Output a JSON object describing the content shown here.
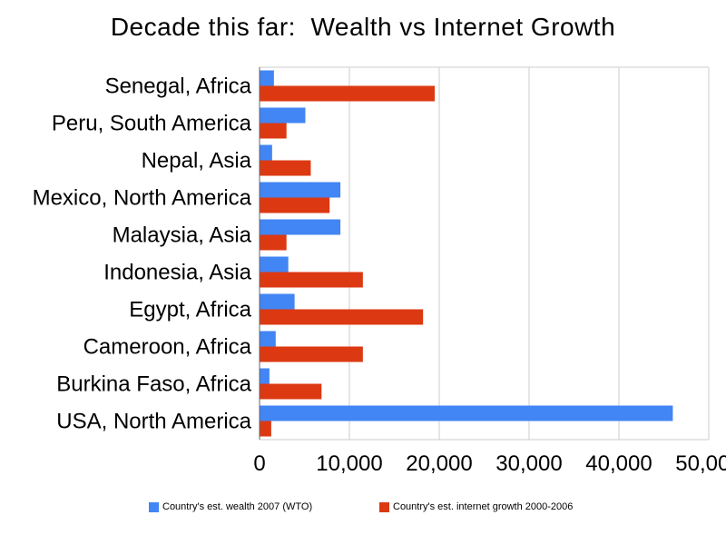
{
  "chart_data": {
    "type": "bar",
    "orientation": "horizontal",
    "title": "Decade this far:  Wealth vs Internet Growth",
    "xlabel": "",
    "ylabel": "",
    "categories": [
      "Senegal, Africa",
      "Peru, South America",
      "Nepal, Asia",
      "Mexico, North America",
      "Malaysia, Asia",
      "Indonesia, Asia",
      "Egypt, Africa",
      "Cameroon, Africa",
      "Burkina Faso, Africa",
      "USA, North America"
    ],
    "series": [
      {
        "name": "Country's est. wealth 2007 (WTO)",
        "color": "#4285f4",
        "values": [
          1600,
          5100,
          1400,
          9000,
          9000,
          3200,
          3900,
          1800,
          1100,
          46000
        ]
      },
      {
        "name": "Country's est. internet growth 2000-2006",
        "color": "#dc3912",
        "values": [
          19500,
          3000,
          5700,
          7800,
          3000,
          11500,
          18200,
          11500,
          6900,
          1300
        ]
      }
    ],
    "xlim": [
      0,
      50000
    ],
    "xticks": [
      "0",
      "10,000",
      "20,000",
      "30,000",
      "40,000",
      "50,000"
    ],
    "grid": true,
    "legend_position": "bottom"
  }
}
